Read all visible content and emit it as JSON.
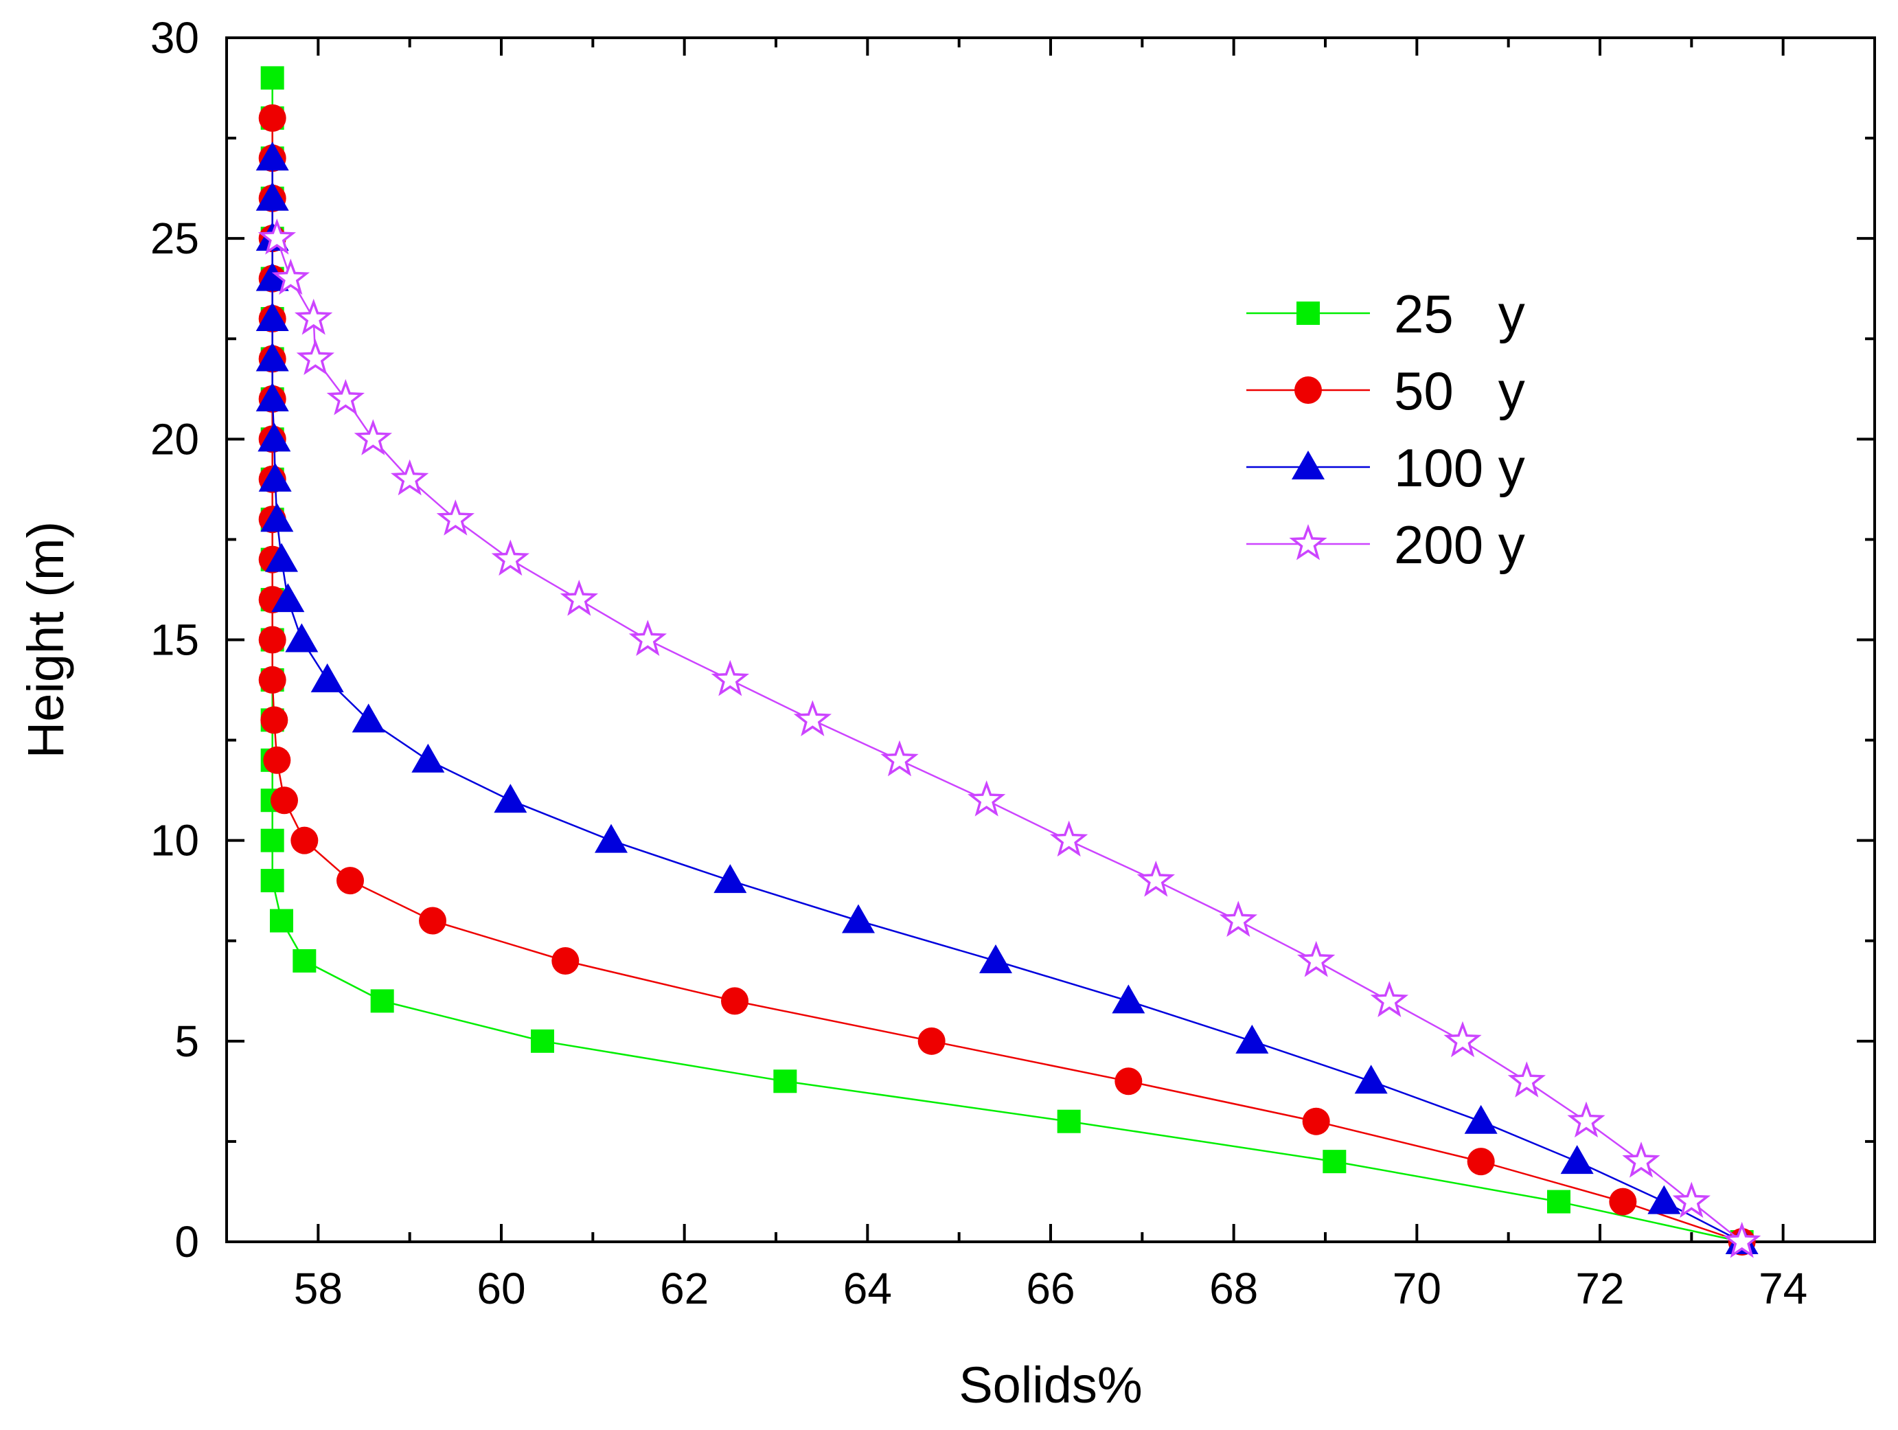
{
  "chart_data": {
    "type": "line",
    "title": "",
    "xlabel": "Solids%",
    "ylabel": "Height (m)",
    "xlim": [
      57,
      75
    ],
    "ylim": [
      0,
      30
    ],
    "xticks": [
      58,
      60,
      62,
      64,
      66,
      68,
      70,
      72,
      74
    ],
    "yticks": [
      0,
      5,
      10,
      15,
      20,
      25,
      30
    ],
    "grid": false,
    "legend_position": "top-right",
    "series": [
      {
        "name": "25 y",
        "legend_label": "25   y",
        "color": "#00ee00",
        "marker": "square",
        "points": [
          {
            "x": 57.5,
            "y": 29
          },
          {
            "x": 57.5,
            "y": 28
          },
          {
            "x": 57.5,
            "y": 27
          },
          {
            "x": 57.5,
            "y": 26
          },
          {
            "x": 57.5,
            "y": 25
          },
          {
            "x": 57.5,
            "y": 24
          },
          {
            "x": 57.5,
            "y": 23
          },
          {
            "x": 57.5,
            "y": 22
          },
          {
            "x": 57.5,
            "y": 21
          },
          {
            "x": 57.5,
            "y": 20
          },
          {
            "x": 57.5,
            "y": 19
          },
          {
            "x": 57.5,
            "y": 18
          },
          {
            "x": 57.5,
            "y": 17
          },
          {
            "x": 57.5,
            "y": 16
          },
          {
            "x": 57.5,
            "y": 15
          },
          {
            "x": 57.5,
            "y": 14
          },
          {
            "x": 57.5,
            "y": 13
          },
          {
            "x": 57.5,
            "y": 12
          },
          {
            "x": 57.5,
            "y": 11
          },
          {
            "x": 57.5,
            "y": 10
          },
          {
            "x": 57.5,
            "y": 9
          },
          {
            "x": 57.6,
            "y": 8
          },
          {
            "x": 57.85,
            "y": 7
          },
          {
            "x": 58.7,
            "y": 6
          },
          {
            "x": 60.45,
            "y": 5
          },
          {
            "x": 63.1,
            "y": 4
          },
          {
            "x": 66.2,
            "y": 3
          },
          {
            "x": 69.1,
            "y": 2
          },
          {
            "x": 71.55,
            "y": 1
          },
          {
            "x": 73.55,
            "y": 0
          }
        ]
      },
      {
        "name": "50 y",
        "legend_label": "50   y",
        "color": "#ee0000",
        "marker": "circle",
        "points": [
          {
            "x": 57.5,
            "y": 28
          },
          {
            "x": 57.5,
            "y": 27
          },
          {
            "x": 57.5,
            "y": 26
          },
          {
            "x": 57.5,
            "y": 25
          },
          {
            "x": 57.5,
            "y": 24
          },
          {
            "x": 57.5,
            "y": 23
          },
          {
            "x": 57.5,
            "y": 22
          },
          {
            "x": 57.5,
            "y": 21
          },
          {
            "x": 57.5,
            "y": 20
          },
          {
            "x": 57.5,
            "y": 19
          },
          {
            "x": 57.5,
            "y": 18
          },
          {
            "x": 57.5,
            "y": 17
          },
          {
            "x": 57.5,
            "y": 16
          },
          {
            "x": 57.5,
            "y": 15
          },
          {
            "x": 57.5,
            "y": 14
          },
          {
            "x": 57.52,
            "y": 13
          },
          {
            "x": 57.55,
            "y": 12
          },
          {
            "x": 57.63,
            "y": 11
          },
          {
            "x": 57.85,
            "y": 10
          },
          {
            "x": 58.35,
            "y": 9
          },
          {
            "x": 59.25,
            "y": 8
          },
          {
            "x": 60.7,
            "y": 7
          },
          {
            "x": 62.55,
            "y": 6
          },
          {
            "x": 64.7,
            "y": 5
          },
          {
            "x": 66.85,
            "y": 4
          },
          {
            "x": 68.9,
            "y": 3
          },
          {
            "x": 70.7,
            "y": 2
          },
          {
            "x": 72.25,
            "y": 1
          },
          {
            "x": 73.55,
            "y": 0
          }
        ]
      },
      {
        "name": "100 y",
        "legend_label": "100 y",
        "color": "#0000dd",
        "marker": "triangle",
        "points": [
          {
            "x": 57.5,
            "y": 27
          },
          {
            "x": 57.5,
            "y": 26
          },
          {
            "x": 57.5,
            "y": 25
          },
          {
            "x": 57.5,
            "y": 24
          },
          {
            "x": 57.5,
            "y": 23
          },
          {
            "x": 57.5,
            "y": 22
          },
          {
            "x": 57.5,
            "y": 21
          },
          {
            "x": 57.52,
            "y": 20
          },
          {
            "x": 57.53,
            "y": 19
          },
          {
            "x": 57.55,
            "y": 18
          },
          {
            "x": 57.6,
            "y": 17
          },
          {
            "x": 57.67,
            "y": 16
          },
          {
            "x": 57.82,
            "y": 15
          },
          {
            "x": 58.1,
            "y": 14
          },
          {
            "x": 58.55,
            "y": 13
          },
          {
            "x": 59.2,
            "y": 12
          },
          {
            "x": 60.1,
            "y": 11
          },
          {
            "x": 61.2,
            "y": 10
          },
          {
            "x": 62.5,
            "y": 9
          },
          {
            "x": 63.9,
            "y": 8
          },
          {
            "x": 65.4,
            "y": 7
          },
          {
            "x": 66.85,
            "y": 6
          },
          {
            "x": 68.2,
            "y": 5
          },
          {
            "x": 69.5,
            "y": 4
          },
          {
            "x": 70.7,
            "y": 3
          },
          {
            "x": 71.75,
            "y": 2
          },
          {
            "x": 72.7,
            "y": 1
          },
          {
            "x": 73.55,
            "y": 0
          }
        ]
      },
      {
        "name": "200 y",
        "legend_label": "200 y",
        "color": "#cc44ff",
        "marker": "star",
        "points": [
          {
            "x": 57.55,
            "y": 25
          },
          {
            "x": 57.7,
            "y": 24
          },
          {
            "x": 57.95,
            "y": 23
          },
          {
            "x": 57.97,
            "y": 22
          },
          {
            "x": 58.3,
            "y": 21
          },
          {
            "x": 58.6,
            "y": 20
          },
          {
            "x": 59.0,
            "y": 19
          },
          {
            "x": 59.5,
            "y": 18
          },
          {
            "x": 60.1,
            "y": 17
          },
          {
            "x": 60.85,
            "y": 16
          },
          {
            "x": 61.6,
            "y": 15
          },
          {
            "x": 62.5,
            "y": 14
          },
          {
            "x": 63.4,
            "y": 13
          },
          {
            "x": 64.35,
            "y": 12
          },
          {
            "x": 65.3,
            "y": 11
          },
          {
            "x": 66.2,
            "y": 10
          },
          {
            "x": 67.15,
            "y": 9
          },
          {
            "x": 68.05,
            "y": 8
          },
          {
            "x": 68.9,
            "y": 7
          },
          {
            "x": 69.7,
            "y": 6
          },
          {
            "x": 70.5,
            "y": 5
          },
          {
            "x": 71.2,
            "y": 4
          },
          {
            "x": 71.85,
            "y": 3
          },
          {
            "x": 72.45,
            "y": 2
          },
          {
            "x": 73.0,
            "y": 1
          },
          {
            "x": 73.55,
            "y": 0
          }
        ]
      }
    ]
  }
}
